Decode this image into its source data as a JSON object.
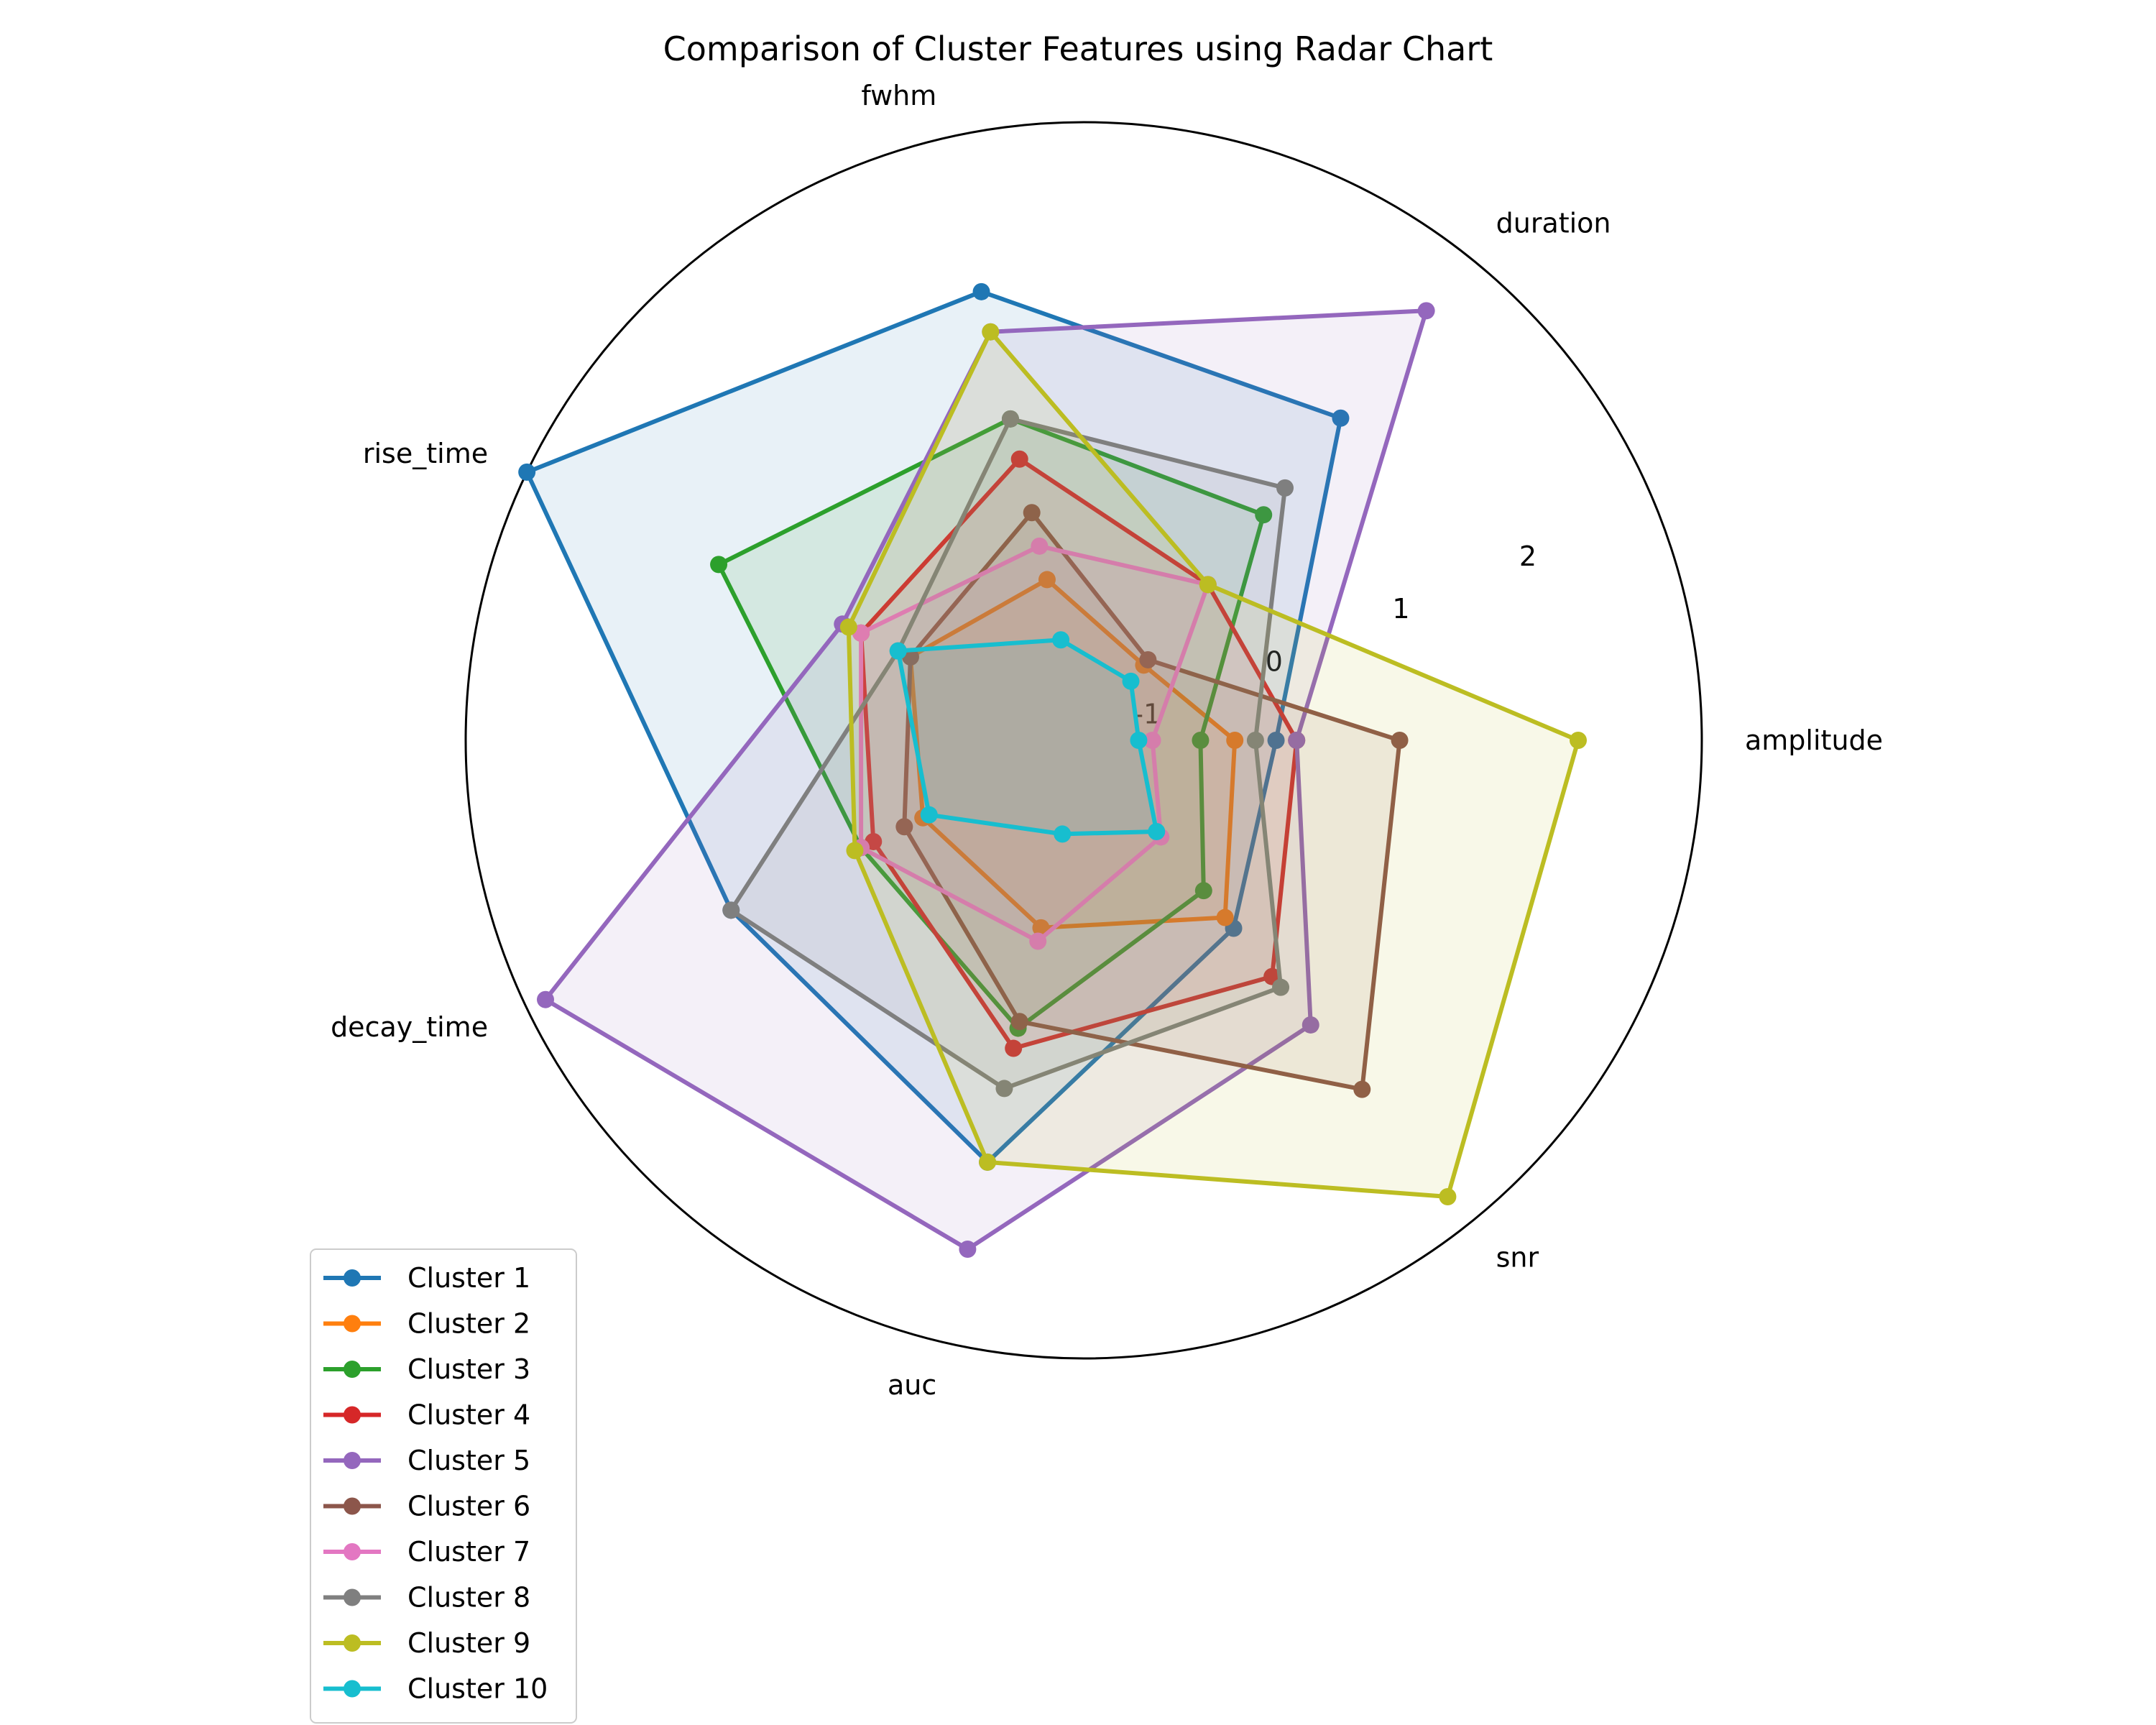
{
  "chart_data": {
    "type": "radar",
    "title": "Comparison of Cluster Features using Radar Chart",
    "axes": [
      "amplitude",
      "duration",
      "fwhm",
      "rise_time",
      "decay_time",
      "auc",
      "snr"
    ],
    "rticks": [
      {
        "value": -1,
        "label": "-1"
      },
      {
        "value": 0,
        "label": "0"
      },
      {
        "value": 1,
        "label": "1"
      },
      {
        "value": 2,
        "label": "2"
      }
    ],
    "rlim": [
      -1.5,
      3.0
    ],
    "legend_position": "lower-left",
    "series": [
      {
        "name": "Cluster 1",
        "color": "#1f77b4",
        "values": [
          -0.1,
          1.5,
          1.85,
          3.0,
          1.35,
          1.65,
          0.25
        ]
      },
      {
        "name": "Cluster 2",
        "color": "#ff7f0e",
        "values": [
          -0.4,
          -0.8,
          -0.3,
          -0.1,
          -0.2,
          -0.1,
          0.15
        ]
      },
      {
        "name": "Cluster 3",
        "color": "#2ca02c",
        "values": [
          -0.65,
          0.6,
          0.9,
          1.45,
          0.3,
          0.65,
          -0.1
        ]
      },
      {
        "name": "Cluster 4",
        "color": "#d62728",
        "values": [
          0.05,
          -0.05,
          0.6,
          0.3,
          0.2,
          0.8,
          0.7
        ]
      },
      {
        "name": "Cluster 5",
        "color": "#9467bd",
        "values": [
          0.05,
          2.5,
          1.55,
          0.45,
          2.85,
          2.3,
          1.15
        ]
      },
      {
        "name": "Cluster 6",
        "color": "#8c564b",
        "values": [
          0.8,
          -0.75,
          0.2,
          -0.1,
          -0.05,
          0.6,
          1.75
        ]
      },
      {
        "name": "Cluster 7",
        "color": "#e377c2",
        "values": [
          -1.0,
          -0.05,
          -0.05,
          0.3,
          0.3,
          0.0,
          -0.6
        ]
      },
      {
        "name": "Cluster 8",
        "color": "#7f7f7f",
        "values": [
          -0.25,
          0.85,
          0.9,
          0.0,
          1.35,
          1.1,
          0.8
        ]
      },
      {
        "name": "Cluster 9",
        "color": "#bcbd22",
        "values": [
          2.1,
          -0.05,
          1.55,
          0.4,
          0.35,
          1.65,
          2.75
        ]
      },
      {
        "name": "Cluster 10",
        "color": "#17becf",
        "values": [
          -1.1,
          -0.95,
          -0.75,
          0.0,
          -0.25,
          -0.8,
          -0.65
        ]
      }
    ]
  }
}
